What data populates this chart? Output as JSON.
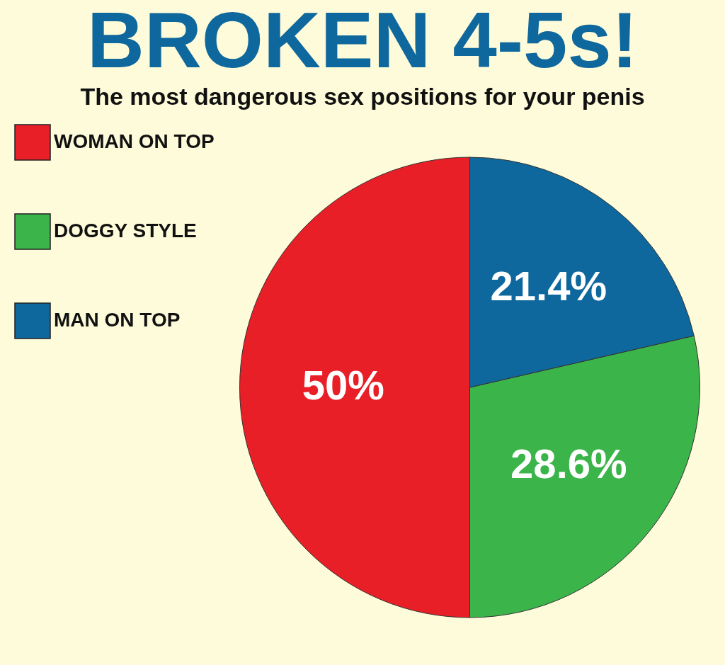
{
  "chart_data": {
    "type": "pie",
    "title": "BROKEN 4-5s!",
    "subtitle": "The most dangerous sex positions for your penis",
    "categories": [
      "WOMAN ON TOP",
      "DOGGY STYLE",
      "MAN ON TOP"
    ],
    "values": [
      50,
      28.6,
      21.4
    ],
    "colors": [
      "#e81f27",
      "#3bb44a",
      "#0f689d"
    ],
    "value_labels": [
      "50%",
      "28.6%",
      "21.4%"
    ],
    "legend": "left"
  }
}
